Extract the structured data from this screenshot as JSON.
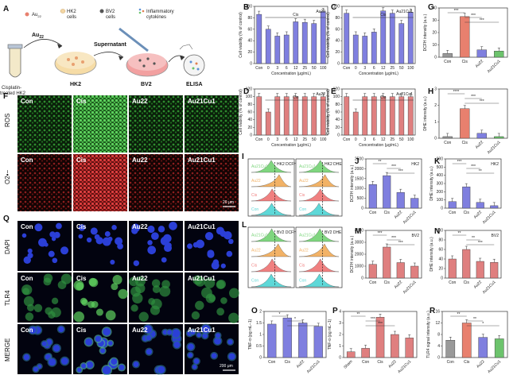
{
  "panel_A": {
    "letter": "A",
    "legend": {
      "au22": "Au",
      "au22_sub": "22",
      "hk2": "HK2",
      "hk2_2": "cells",
      "bv2": "BV2",
      "bv2_2": "cells",
      "infl": "Inflammatory",
      "infl_2": "cytokines"
    },
    "labels": {
      "au22_arrow": "Au",
      "au22_arrow_sub": "22",
      "supernatant": "Supernatant",
      "cis_hk2": "Cisplatin-",
      "cis_hk2_2": "treated HK2",
      "hk2_dish": "HK2",
      "bv2_dish": "BV2",
      "elisa": "ELISA"
    }
  },
  "panel_F": {
    "letter": "F",
    "cols": [
      "Con",
      "Cis",
      "Au22",
      "Au21Cu1"
    ],
    "row_ros": "ROS",
    "row_o2": "O2•−",
    "scale": "20 μm"
  },
  "panel_Q": {
    "letter": "Q",
    "cols": [
      "Con",
      "Cis",
      "Au22",
      "Au21Cu1"
    ],
    "rows": [
      "DAPI",
      "TLR4",
      "MERGE"
    ],
    "scale": "200 μm"
  },
  "axes": {
    "viability": "Cell viability (% of control)",
    "concentration": "Concentration (μg/mL)",
    "dcfh": "DCFH intensity (a.u.)",
    "dhe": "DHE intensity (a.u.)",
    "tnf": "TNF-α (pg mL−1)",
    "tlr4": "TLR4 signal intensity (a.u.)"
  },
  "flow_I": {
    "letter": "I",
    "left_title": "HK2 DCFH",
    "right_title": "HK2 DHE",
    "rows": [
      "Au21Cu1",
      "Au22",
      "Cis",
      "Con"
    ]
  },
  "flow_L": {
    "letter": "L",
    "left_title": "BV2 DCFH",
    "right_title": "BV2 DHE",
    "rows": [
      "Au21Cu1",
      "Au22",
      "Cis",
      "Con"
    ]
  },
  "chart_data": [
    {
      "id": "B",
      "type": "bar",
      "title": "Au22",
      "bracket": "Cis",
      "categories": [
        "Con",
        "0",
        "3",
        "6",
        "12",
        "25",
        "50",
        "100"
      ],
      "values": [
        86,
        60,
        48,
        50,
        73,
        72,
        70,
        91
      ],
      "color": "#7f7fdf",
      "ylim": [
        0,
        100
      ],
      "yticks": [
        0,
        20,
        40,
        60,
        80,
        100
      ],
      "xlabel": "Concentration (μg/mL)",
      "ylabel": "Cell viability (% of control)"
    },
    {
      "id": "C",
      "type": "bar",
      "title": "Au21Cu1",
      "bracket": "Cis",
      "categories": [
        "Con",
        "0",
        "3",
        "6",
        "12",
        "25",
        "50",
        "100"
      ],
      "values": [
        88,
        50,
        48,
        55,
        92,
        88,
        70,
        90
      ],
      "color": "#7f7fdf",
      "ylim": [
        0,
        100
      ],
      "yticks": [
        0,
        20,
        40,
        60,
        80,
        100
      ],
      "xlabel": "Concentration (μg/mL)",
      "ylabel": "Cell viability (% of control)"
    },
    {
      "id": "D",
      "type": "bar",
      "title": "Au22",
      "bracket": "Cis",
      "categories": [
        "Con",
        "0",
        "3",
        "6",
        "12",
        "25",
        "50",
        "100"
      ],
      "values": [
        100,
        60,
        100,
        100,
        100,
        100,
        100,
        100
      ],
      "color": "#df7f7f",
      "ylim": [
        0,
        120
      ],
      "yticks": [
        0,
        20,
        40,
        60,
        80,
        100,
        120
      ],
      "xlabel": "Concentration (μg/mL)",
      "ylabel": "Cell viability (% of control)"
    },
    {
      "id": "E",
      "type": "bar",
      "title": "Au21Cu1",
      "bracket": "Cis",
      "categories": [
        "Con",
        "0",
        "3",
        "6",
        "12",
        "25",
        "50",
        "100"
      ],
      "values": [
        100,
        60,
        100,
        100,
        100,
        100,
        100,
        100
      ],
      "color": "#df7f7f",
      "ylim": [
        0,
        120
      ],
      "yticks": [
        0,
        20,
        40,
        60,
        80,
        100,
        120
      ],
      "xlabel": "Concentration (μg/mL)",
      "ylabel": "Cell viability (% of control)"
    },
    {
      "id": "G",
      "type": "bar",
      "categories": [
        "Con",
        "Cis",
        "Au22",
        "Au21Cu1"
      ],
      "values": [
        3,
        33,
        6,
        5
      ],
      "colors": [
        "#999999",
        "#e8806e",
        "#7f7fdf",
        "#6cc36c"
      ],
      "ylim": [
        0,
        40
      ],
      "yticks": [
        0,
        10,
        20,
        30,
        40
      ],
      "ylabel": "DCFH intensity (a.u.)",
      "sig": [
        "***",
        "***",
        "***"
      ]
    },
    {
      "id": "H",
      "type": "bar",
      "categories": [
        "Con",
        "Cis",
        "Au22",
        "Au21Cu1"
      ],
      "values": [
        0.1,
        1.8,
        0.3,
        0.1
      ],
      "colors": [
        "#999999",
        "#e8806e",
        "#7f7fdf",
        "#6cc36c"
      ],
      "ylim": [
        0,
        3
      ],
      "yticks": [
        0,
        1,
        2,
        3
      ],
      "ylabel": "DHE intensity (a.u.)",
      "sig": [
        "****",
        "***",
        "***"
      ]
    },
    {
      "id": "J",
      "type": "bar",
      "title": "HK2",
      "categories": [
        "Con",
        "Cis",
        "Au22",
        "Au21Cu1"
      ],
      "values": [
        1200,
        1650,
        800,
        500
      ],
      "color": "#7f7fdf",
      "ylim": [
        0,
        2500
      ],
      "yticks": [
        0,
        500,
        1000,
        1500,
        2000,
        2500
      ],
      "ylabel": "DCFH intensity (a.u.)",
      "sig": [
        "**",
        "***",
        "***"
      ]
    },
    {
      "id": "K",
      "type": "bar",
      "title": "HK2",
      "categories": [
        "Con",
        "Cis",
        "Au22",
        "Au21Cu1"
      ],
      "values": [
        80,
        260,
        70,
        30
      ],
      "color": "#7f7fdf",
      "ylim": [
        0,
        600
      ],
      "yticks": [
        0,
        100,
        200,
        300,
        400,
        500,
        600
      ],
      "ylabel": "DHE intensity (a.u.)",
      "sig": [
        "***",
        "***",
        "**"
      ]
    },
    {
      "id": "M",
      "type": "bar",
      "title": "BV2",
      "categories": [
        "Con",
        "Cis",
        "Au22",
        "Au21Cu1"
      ],
      "values": [
        1150,
        2600,
        1300,
        1000
      ],
      "color": "#df7f7f",
      "ylim": [
        0,
        4000
      ],
      "yticks": [
        0,
        1000,
        2000,
        3000,
        4000
      ],
      "ylabel": "DCFH intensity (a.u.)",
      "sig": [
        "***",
        "***",
        "***"
      ]
    },
    {
      "id": "N",
      "type": "bar",
      "title": "BV2",
      "categories": [
        "Con",
        "Cis",
        "Au22",
        "Au21Cu1"
      ],
      "values": [
        40,
        60,
        35,
        33
      ],
      "color": "#df7f7f",
      "ylim": [
        0,
        100
      ],
      "yticks": [
        0,
        20,
        40,
        60,
        80,
        100
      ],
      "ylabel": "DHE intensity (a.u.)",
      "sig": [
        "**",
        "**",
        "***"
      ]
    },
    {
      "id": "O",
      "type": "bar",
      "categories": [
        "Con",
        "Cis",
        "Au22",
        "Au21Cu1"
      ],
      "values": [
        1.45,
        1.72,
        1.5,
        1.35
      ],
      "color": "#7f7fdf",
      "ylim": [
        0,
        2.0
      ],
      "yticks": [
        0.0,
        0.5,
        1.0,
        1.5,
        2.0
      ],
      "ylabel": "TNF-α (pg mL−1)",
      "sig": [
        "*",
        "*",
        "*"
      ]
    },
    {
      "id": "P",
      "type": "bar",
      "categories": [
        "Sham",
        "Con",
        "Cis",
        "Au22",
        "Au21Cu1"
      ],
      "values": [
        0.5,
        0.8,
        3.5,
        2.0,
        1.7
      ],
      "color": "#df7f7f",
      "ylim": [
        0,
        4
      ],
      "yticks": [
        0,
        1,
        2,
        3,
        4
      ],
      "ylabel": "TNF-α (pg mL−1)",
      "sig": [
        "**",
        "***",
        "***"
      ]
    },
    {
      "id": "R",
      "type": "bar",
      "categories": [
        "Con",
        "Cis",
        "Au22",
        "Au21Cu1"
      ],
      "values": [
        6,
        12,
        7,
        6.5
      ],
      "colors": [
        "#999999",
        "#e8806e",
        "#7f7fdf",
        "#6cc36c"
      ],
      "ylim": [
        0,
        16
      ],
      "yticks": [
        0,
        4,
        8,
        12,
        16
      ],
      "ylabel": "TLR4 signal intensity (a.u.)",
      "sig": [
        "**",
        "**",
        "*"
      ]
    }
  ]
}
